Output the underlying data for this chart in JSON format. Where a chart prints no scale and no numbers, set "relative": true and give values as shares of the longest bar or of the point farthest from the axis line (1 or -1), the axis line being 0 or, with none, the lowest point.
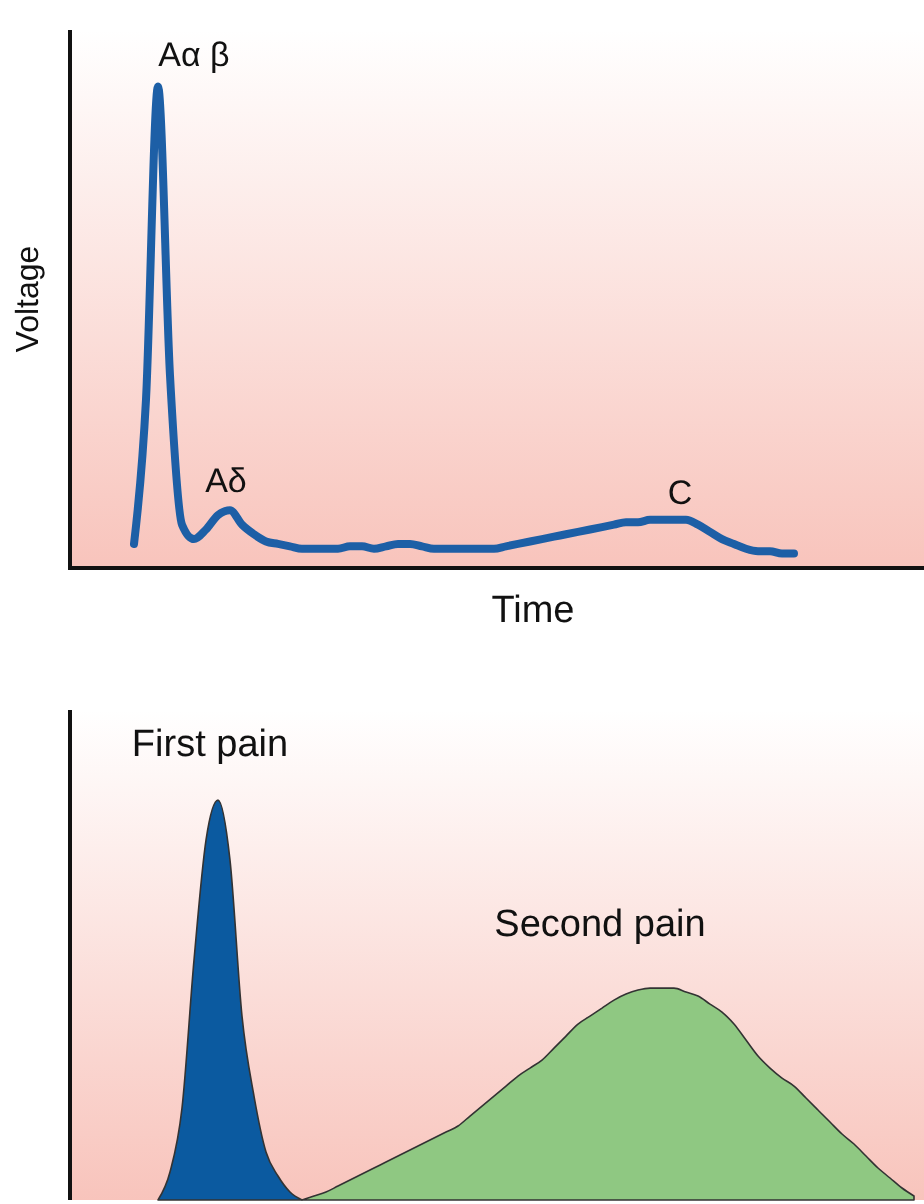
{
  "chart_data": [
    {
      "type": "line",
      "relative": true,
      "xlabel": "Time",
      "ylabel": "Voltage",
      "legend": false,
      "line_style": "solid",
      "annotations": [
        "Aα β",
        "Aδ",
        "C"
      ],
      "categories": [
        null,
        null,
        null,
        null,
        null,
        null,
        null,
        null,
        null,
        null,
        null,
        null,
        null,
        null,
        null,
        null,
        null,
        null,
        null,
        null,
        null,
        null,
        null,
        null,
        null,
        null,
        null,
        null,
        null,
        null,
        null,
        null,
        null,
        null,
        null,
        null,
        null,
        null,
        null,
        null,
        null,
        null,
        null,
        null,
        null,
        null,
        null,
        null,
        null,
        null,
        null,
        null,
        null,
        null,
        null,
        null,
        null,
        null,
        null,
        null,
        null,
        null,
        null,
        null,
        null,
        null,
        null,
        null,
        null,
        null,
        null
      ],
      "series": [
        {
          "color": "#1d5fa6",
          "values": [
            null,
            null,
            null,
            null,
            null,
            0.05,
            0.35,
            1,
            0.4,
            0.09,
            0.06,
            0.08,
            0.11,
            0.12,
            0.09,
            0.07,
            0.055,
            0.05,
            0.045,
            0.04,
            0.04,
            0.04,
            0.04,
            0.045,
            0.045,
            0.04,
            0.045,
            0.05,
            0.05,
            0.045,
            0.04,
            0.04,
            0.04,
            0.04,
            0.04,
            0.04,
            0.045,
            0.05,
            0.055,
            0.06,
            0.065,
            0.07,
            0.075,
            0.08,
            0.085,
            0.09,
            0.095,
            0.095,
            0.1,
            0.1,
            0.1,
            0.1,
            0.09,
            0.075,
            0.06,
            0.05,
            0.04,
            0.035,
            0.035,
            0.03,
            0.03,
            null,
            null,
            null,
            null,
            null,
            null,
            null,
            null,
            null,
            null
          ]
        }
      ]
    },
    {
      "type": "area",
      "relative": true,
      "legend": false,
      "categories": [
        null,
        null,
        null,
        null,
        null,
        null,
        null,
        null,
        null,
        null,
        null,
        null,
        null,
        null,
        null,
        null,
        null,
        null,
        null,
        null,
        null,
        null,
        null,
        null,
        null,
        null,
        null,
        null,
        null,
        null,
        null,
        null,
        null,
        null,
        null,
        null,
        null,
        null,
        null,
        null,
        null,
        null,
        null,
        null,
        null,
        null,
        null,
        null,
        null,
        null,
        null,
        null,
        null,
        null,
        null,
        null,
        null,
        null,
        null,
        null,
        null,
        null,
        null,
        null,
        null,
        null,
        null,
        null,
        null,
        null,
        null
      ],
      "series": [
        {
          "name": "First pain",
          "color": "#0b5aa0",
          "values": [
            null,
            null,
            null,
            null,
            null,
            null,
            null,
            0,
            0.07,
            0.23,
            0.6,
            0.9,
            1,
            0.85,
            0.46,
            0.26,
            0.12,
            0.06,
            0.02,
            0,
            null,
            null,
            null,
            null,
            null,
            null,
            null,
            null,
            null,
            null,
            null,
            null,
            null,
            null,
            null,
            null,
            null,
            null,
            null,
            null,
            null,
            null,
            null,
            null,
            null,
            null,
            null,
            null,
            null,
            null,
            null,
            null,
            null,
            null,
            null,
            null,
            null,
            null,
            null,
            null,
            null,
            null,
            null,
            null,
            null,
            null,
            null,
            null,
            null,
            null,
            null
          ]
        },
        {
          "name": "Second pain",
          "color": "#8fc882",
          "values": [
            null,
            null,
            null,
            null,
            null,
            null,
            null,
            null,
            null,
            null,
            null,
            null,
            null,
            null,
            null,
            null,
            null,
            null,
            null,
            0,
            0.01,
            0.02,
            0.035,
            0.05,
            0.065,
            0.08,
            0.095,
            0.11,
            0.125,
            0.14,
            0.155,
            0.17,
            0.185,
            0.21,
            0.235,
            0.26,
            0.285,
            0.31,
            0.33,
            0.35,
            0.38,
            0.41,
            0.44,
            0.46,
            0.48,
            0.5,
            0.515,
            0.525,
            0.53,
            0.53,
            0.53,
            0.52,
            0.51,
            0.49,
            0.47,
            0.44,
            0.4,
            0.36,
            0.33,
            0.305,
            0.285,
            0.255,
            0.225,
            0.195,
            0.165,
            0.14,
            0.11,
            0.08,
            0.055,
            0.03,
            0.01
          ]
        }
      ]
    }
  ]
}
